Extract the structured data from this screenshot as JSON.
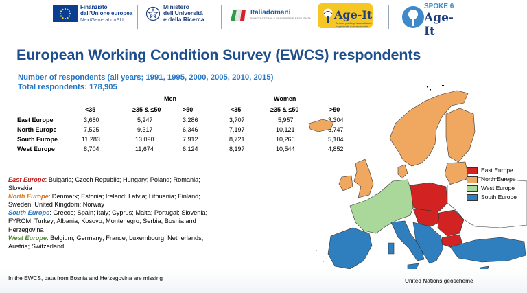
{
  "logos": {
    "eu": {
      "line1": "Finanziato",
      "line2": "dall'Unione europea",
      "line3": "NextGenerationEU"
    },
    "mur": {
      "line1": "Ministero",
      "line2": "dell'Università",
      "line3": "e della Ricerca"
    },
    "italiadomani": {
      "label": "Italiadomani",
      "sub": "PIANO NAZIONALE DI RIPRESA E RESILIENZA"
    },
    "ageit": {
      "label": "Age-It",
      "sub": "A novel public-private alliance to generate socioeconomic..."
    },
    "spoke": {
      "line1": "SPOKE 6",
      "line2": "Age-It"
    }
  },
  "title": "European Working Condition Survey (EWCS) respondents",
  "subtitle": "Number of respondents (all years; 1991, 1995, 2000, 2005, 2010, 2015)",
  "total": "Total respondents: 178,905",
  "table": {
    "groups": [
      "Men",
      "Women"
    ],
    "columns": [
      "<35",
      "≥35 & ≤50",
      ">50",
      "<35",
      "≥35 & ≤50",
      ">50"
    ],
    "rows": [
      {
        "label": "East Europe",
        "values": [
          "3,680",
          "5,247",
          "3,286",
          "3,707",
          "5,957",
          "3,304"
        ]
      },
      {
        "label": "North Europe",
        "values": [
          "7,525",
          "9,317",
          "6,346",
          "7,197",
          "10,121",
          "6,747"
        ]
      },
      {
        "label": "South Europe",
        "values": [
          "11,283",
          "13,090",
          "7,912",
          "8,721",
          "10,266",
          "5,104"
        ]
      },
      {
        "label": "West Europe",
        "values": [
          "8,704",
          "11,674",
          "6,124",
          "8,197",
          "10,544",
          "4,852"
        ]
      }
    ]
  },
  "regions": {
    "east": {
      "name": "East Europe",
      "countries": ": Bulgaria; Czech Republic; Hungary; Poland; Romania; Slovakia",
      "color": "#d32222"
    },
    "north": {
      "name": "North Europe",
      "countries": ": Denmark; Estonia; Ireland; Latvia; Lithuania; Finland; Sweden; United Kingdom; Norway",
      "color": "#f0a860"
    },
    "south": {
      "name": "South Europe",
      "countries": ": Greece; Spain; Italy; Cyprus; Malta; Portugal; Slovenia; FYROM; Turkey; Albania; Kosovo; Montenegro; Serbia; Bosnia and Herzegovina",
      "color": "#2f7fbf"
    },
    "west": {
      "name": "West Europe",
      "countries": ": Belgium; Germany; France; Luxembourg; Netherlands; Austria; Switzerland",
      "color": "#a9d89a"
    }
  },
  "map_legend": [
    "East Europe",
    "North Europe",
    "West Europe",
    "South Europe"
  ],
  "note": "In the EWCS, data from Bosnia and Herzegovina are missing",
  "source": "United Nations geoscheme"
}
